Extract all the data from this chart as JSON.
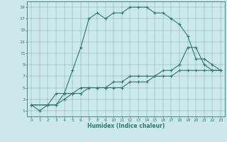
{
  "xlabel": "Humidex (Indice chaleur)",
  "ylabel": "",
  "bg_color": "#cce8e8",
  "line_color": "#2d7a70",
  "xlim": [
    -0.5,
    23.5
  ],
  "ylim": [
    0,
    20
  ],
  "xticks": [
    0,
    1,
    2,
    3,
    4,
    5,
    6,
    7,
    8,
    9,
    10,
    11,
    12,
    13,
    14,
    15,
    16,
    17,
    18,
    19,
    20,
    21,
    22,
    23
  ],
  "yticks": [
    1,
    3,
    5,
    7,
    9,
    11,
    13,
    15,
    17,
    19
  ],
  "series1_x": [
    0,
    1,
    2,
    3,
    4,
    5,
    6,
    7,
    8,
    9,
    10,
    11,
    12,
    13,
    14,
    15,
    16,
    17,
    18,
    19,
    20,
    21,
    22,
    23
  ],
  "series1_y": [
    2,
    1,
    2,
    4,
    4,
    8,
    12,
    17,
    18,
    17,
    18,
    18,
    19,
    19,
    19,
    18,
    18,
    17,
    16,
    14,
    10,
    10,
    9,
    8
  ],
  "series2_x": [
    0,
    2,
    3,
    4,
    5,
    6,
    7,
    8,
    9,
    10,
    11,
    12,
    13,
    14,
    15,
    16,
    17,
    18,
    19,
    20,
    21,
    22,
    23
  ],
  "series2_y": [
    2,
    2,
    2,
    4,
    4,
    5,
    5,
    5,
    5,
    6,
    6,
    7,
    7,
    7,
    7,
    8,
    8,
    9,
    12,
    12,
    9,
    8,
    8
  ],
  "series3_x": [
    0,
    2,
    3,
    4,
    5,
    6,
    7,
    8,
    9,
    10,
    11,
    12,
    13,
    14,
    15,
    16,
    17,
    18,
    19,
    20,
    21,
    22,
    23
  ],
  "series3_y": [
    2,
    2,
    2,
    3,
    4,
    4,
    5,
    5,
    5,
    5,
    5,
    6,
    6,
    6,
    7,
    7,
    7,
    8,
    8,
    8,
    8,
    8,
    8
  ]
}
